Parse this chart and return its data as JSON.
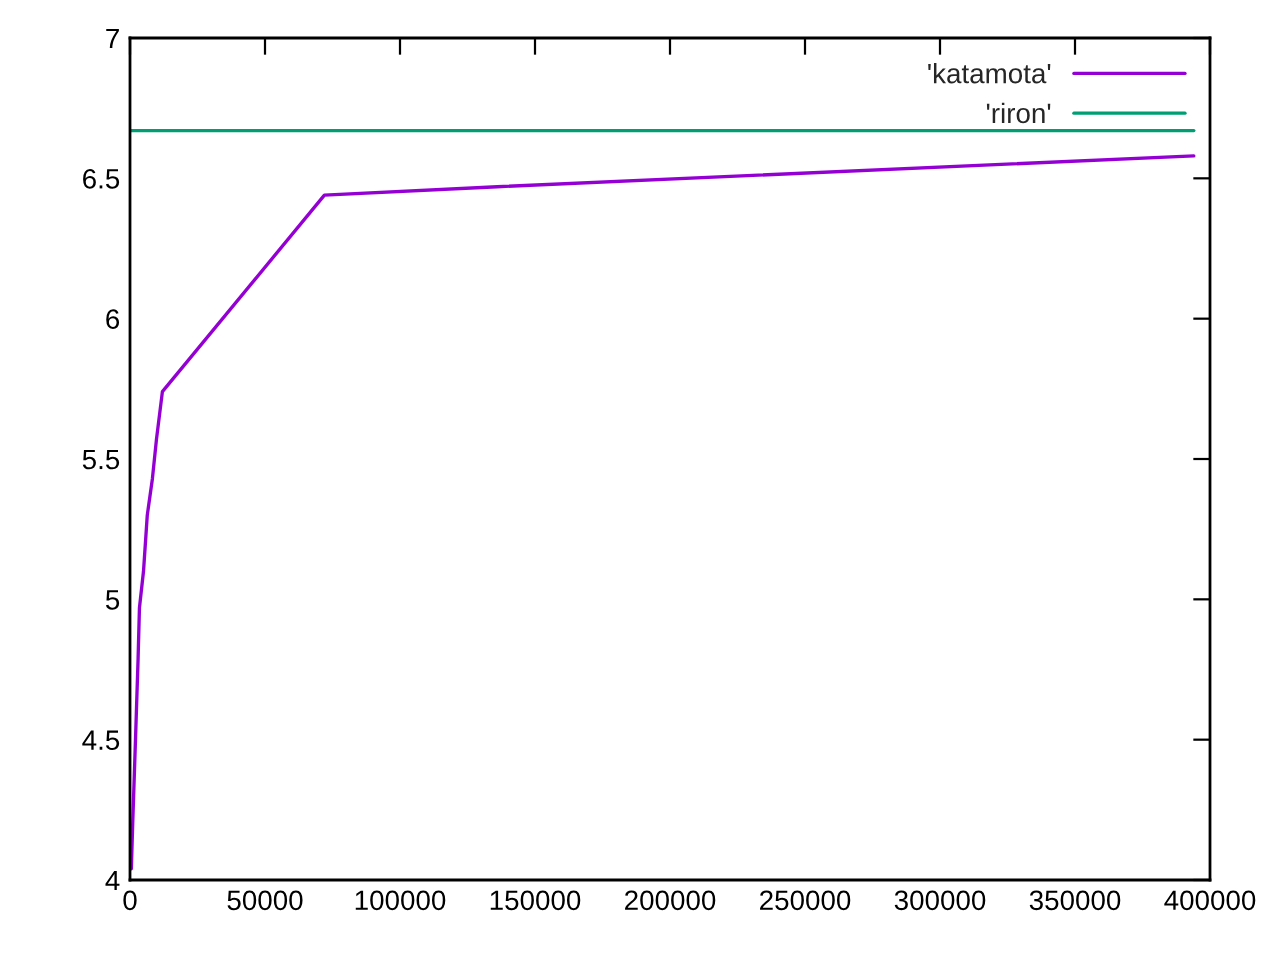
{
  "chart_data": {
    "type": "line",
    "xlim": [
      0,
      400000
    ],
    "ylim": [
      4,
      7
    ],
    "xticks": [
      0,
      50000,
      100000,
      150000,
      200000,
      250000,
      300000,
      350000,
      400000
    ],
    "yticks": [
      4,
      4.5,
      5,
      5.5,
      6,
      6.5,
      7
    ],
    "legend": "top right",
    "grid": false,
    "series": [
      {
        "name": "'katamota'",
        "color": "#9400d3",
        "x": [
          500,
          1000,
          2000,
          3000,
          3500,
          5000,
          6400,
          8300,
          9800,
          12000,
          72000,
          136000,
          394000
        ],
        "values": [
          4.04,
          4.2,
          4.49,
          4.79,
          4.97,
          5.1,
          5.3,
          5.43,
          5.57,
          5.74,
          6.44,
          6.47,
          6.58
        ]
      },
      {
        "name": "'riron'",
        "color": "#009e73",
        "x": [
          500,
          394000
        ],
        "values": [
          6.67,
          6.67
        ]
      }
    ]
  }
}
